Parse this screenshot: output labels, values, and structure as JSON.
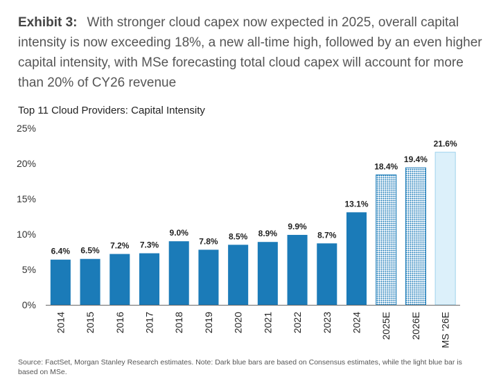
{
  "headline": {
    "exhibit_label": "Exhibit 3:",
    "text": "With stronger cloud capex now expected in 2025, overall capital intensity is now exceeding 18%, a new all-time high, followed by an even higher capital intensity, with MSe forecasting total cloud capex will account for more than 20% of CY26 revenue"
  },
  "source_note": "Source: FactSet, Morgan Stanley Research estimates. Note: Dark blue bars are based on Consensus estimates, while the light blue bar is based on MSe.",
  "colors": {
    "actual_bar": "#1b7bb8",
    "estimate_bar_fill": "#a9d5ee",
    "estimate_bar_stroke": "#1b7bb8",
    "mse_bar_fill": "#dcf0fa",
    "mse_bar_stroke": "#9fd2ec",
    "axis": "#666666",
    "grid": "#e4e4e4"
  },
  "chart_data": {
    "type": "bar",
    "title": "Top 11 Cloud Providers: Capital Intensity",
    "xlabel": "",
    "ylabel": "",
    "ylim": [
      0,
      25
    ],
    "yticks": [
      "0%",
      "5%",
      "10%",
      "15%",
      "20%",
      "25%"
    ],
    "ytick_values": [
      0,
      5,
      10,
      15,
      20,
      25
    ],
    "grid": false,
    "categories": [
      "2014",
      "2015",
      "2016",
      "2017",
      "2018",
      "2019",
      "2020",
      "2021",
      "2022",
      "2023",
      "2024",
      "2025E",
      "2026E",
      "MS '26E"
    ],
    "values": [
      6.4,
      6.5,
      7.2,
      7.3,
      9.0,
      7.8,
      8.5,
      8.9,
      9.9,
      8.7,
      13.1,
      18.4,
      19.4,
      21.6
    ],
    "data_labels": [
      "6.4%",
      "6.5%",
      "7.2%",
      "7.3%",
      "9.0%",
      "7.8%",
      "8.5%",
      "8.9%",
      "9.9%",
      "8.7%",
      "13.1%",
      "18.4%",
      "19.4%",
      "21.6%"
    ],
    "bar_styles": [
      "actual",
      "actual",
      "actual",
      "actual",
      "actual",
      "actual",
      "actual",
      "actual",
      "actual",
      "actual",
      "actual",
      "estimate",
      "estimate",
      "mse"
    ]
  }
}
